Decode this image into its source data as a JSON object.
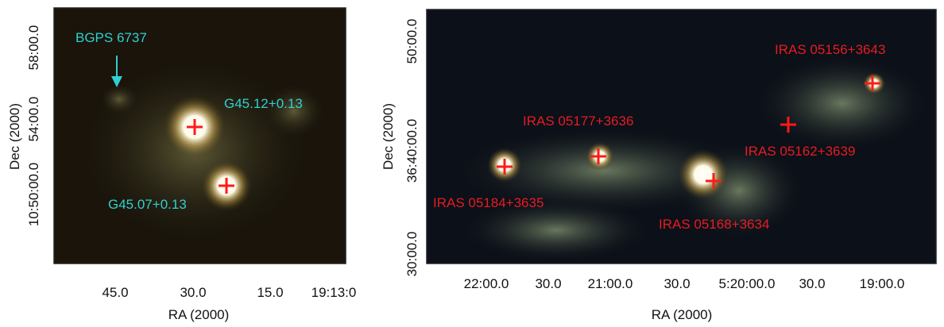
{
  "panels": [
    {
      "x_label": "RA (2000)",
      "y_label": "Dec (2000)",
      "x_ticks": [
        "45.0",
        "30.0",
        "15.0",
        "19:13:0"
      ],
      "y_ticks": [
        "58:00.0",
        "54:00.0",
        "10:50:00.0"
      ],
      "sources": [
        "BGPS 6737",
        "G45.12+0.13",
        "G45.07+0.13"
      ]
    },
    {
      "x_label": "RA (2000)",
      "y_label": "Dec (2000)",
      "x_ticks": [
        "22:00.0",
        "30.0",
        "21:00.0",
        "30.0",
        "5:20:00.0",
        "30.0",
        "19:00.0"
      ],
      "y_ticks": [
        "50:00.0",
        "36:40:00.0",
        "30:00.0"
      ],
      "sources": [
        "IRAS 05156+3643",
        "IRAS 05177+3636",
        "IRAS 05162+3639",
        "IRAS 05184+3635",
        "IRAS 05168+3634"
      ]
    }
  ]
}
